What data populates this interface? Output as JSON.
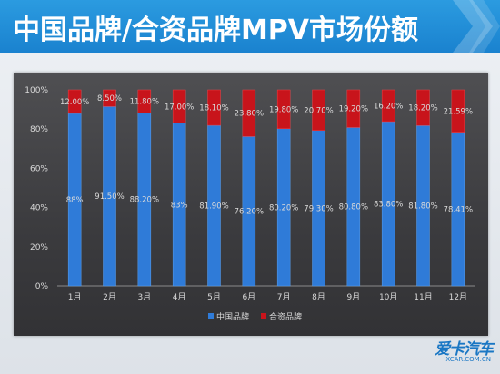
{
  "header": {
    "title": "中国品牌/合资品牌MPV市场份额"
  },
  "watermark": {
    "logo_text": "爱卡汽车",
    "url": "XCAR.COM.CN"
  },
  "colors": {
    "header_bg": "#1f8ad6",
    "chart_bg": "#3f3f42",
    "china_series": "#2f7bd8",
    "jv_series": "#c8141b",
    "label_text": "#d9d9d9"
  },
  "chart_data": {
    "type": "bar",
    "stacked": true,
    "percent": true,
    "categories": [
      "1月",
      "2月",
      "3月",
      "4月",
      "5月",
      "6月",
      "7月",
      "8月",
      "9月",
      "10月",
      "11月",
      "12月"
    ],
    "series": [
      {
        "name": "中国品牌",
        "values": [
          88,
          91.5,
          88.2,
          83,
          81.9,
          76.2,
          80.2,
          79.3,
          80.8,
          83.8,
          81.8,
          78.41
        ],
        "labels": [
          "88%",
          "91.50%",
          "88.20%",
          "83%",
          "81.90%",
          "76.20%",
          "80.20%",
          "79.30%",
          "80.80%",
          "83.80%",
          "81.80%",
          "78.41%"
        ]
      },
      {
        "name": "合资品牌",
        "values": [
          12,
          8.5,
          11.8,
          17,
          18.1,
          23.8,
          19.8,
          20.7,
          19.2,
          16.2,
          18.2,
          21.59
        ],
        "labels": [
          "12.00%",
          "8.50%",
          "11.80%",
          "17.00%",
          "18.10%",
          "23.80%",
          "19.80%",
          "20.70%",
          "19.20%",
          "16.20%",
          "18.20%",
          "21.59%"
        ]
      }
    ],
    "yticks": [
      "0%",
      "20%",
      "40%",
      "60%",
      "80%",
      "100%"
    ],
    "ylim": [
      0,
      100
    ],
    "grid": false,
    "legend": "bottom-center"
  }
}
